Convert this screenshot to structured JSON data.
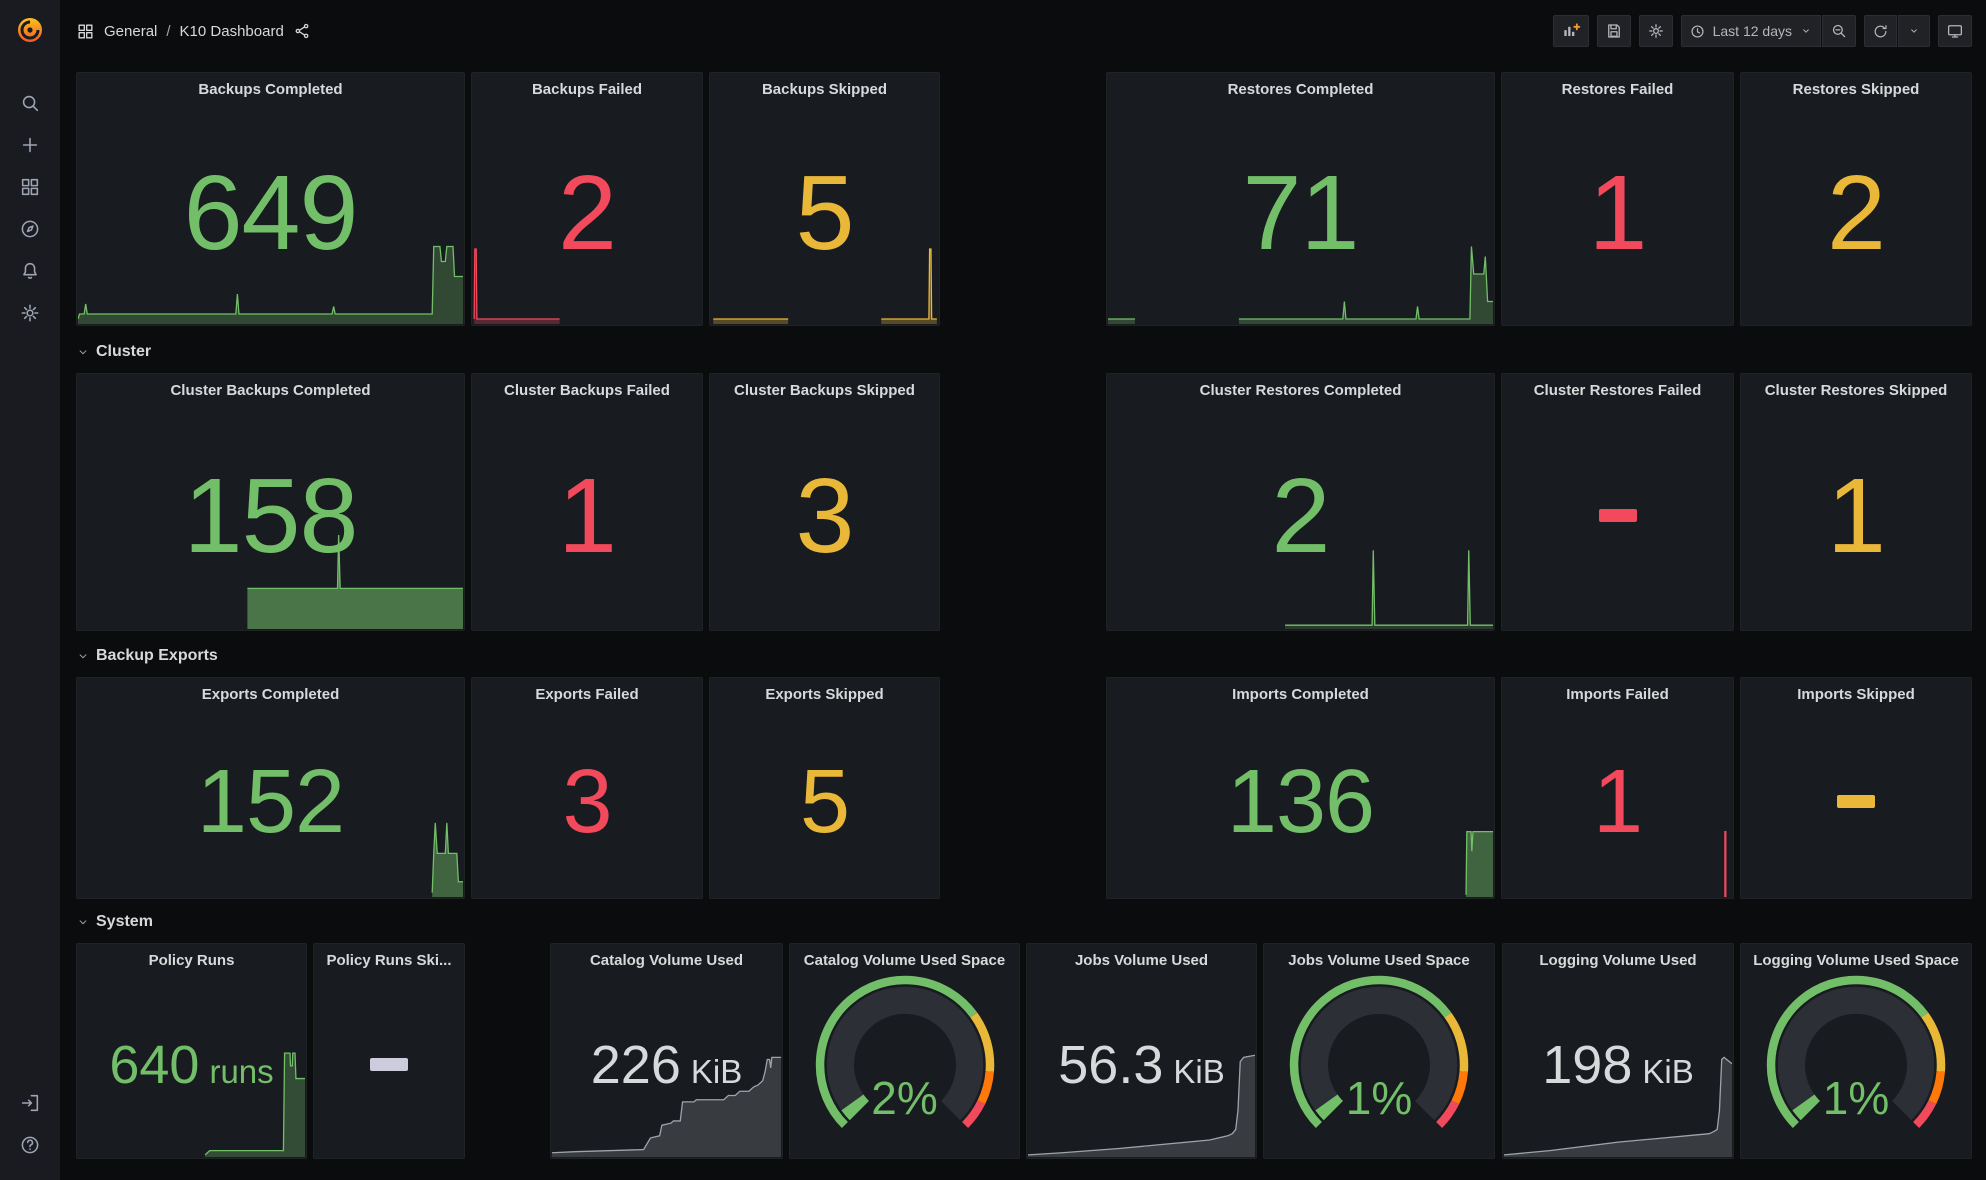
{
  "nav": {
    "folder": "General",
    "separator": "/",
    "dashboard": "K10 Dashboard",
    "time_range": "Last 12 days"
  },
  "sections": {
    "cluster": "Cluster",
    "backup_exports": "Backup Exports",
    "system": "System"
  },
  "colors": {
    "green": "#73BF69",
    "red": "#F2495C",
    "yellow": "#EAB839",
    "text": "#D8D9DA"
  },
  "gauges_common": {
    "thresholds": [
      {
        "to": 0.7,
        "color": "#73BF69"
      },
      {
        "to": 0.85,
        "color": "#EAB839"
      },
      {
        "to": 0.93,
        "color": "#FF780A"
      },
      {
        "to": 1.0,
        "color": "#F2495C"
      }
    ]
  },
  "panels": {
    "backups_completed": {
      "title": "Backups Completed",
      "value": "649",
      "spark": {
        "color": "#73BF69",
        "fill": "rgba(115,191,105,0.28)",
        "segs": [
          [
            [
              0,
              2
            ],
            [
              0.4,
              4
            ],
            [
              1.6,
              4
            ],
            [
              2,
              8
            ],
            [
              2.4,
              4
            ],
            [
              41,
              4
            ],
            [
              41.4,
              12
            ],
            [
              41.8,
              4
            ],
            [
              66,
              4
            ],
            [
              66.4,
              7
            ],
            [
              66.8,
              4
            ],
            [
              92,
              4
            ],
            [
              92.4,
              31
            ],
            [
              94,
              31
            ],
            [
              94.4,
              25
            ],
            [
              95.4,
              25
            ],
            [
              95.8,
              31
            ],
            [
              97.4,
              31
            ],
            [
              97.8,
              19
            ],
            [
              100,
              19
            ]
          ]
        ]
      }
    },
    "backups_failed": {
      "title": "Backups Failed",
      "value": "2",
      "spark": {
        "color": "#F2495C",
        "fill": "rgba(242,73,92,0.3)",
        "segs": [
          [
            [
              0.5,
              2
            ],
            [
              0.8,
              30
            ],
            [
              1.4,
              30
            ],
            [
              1.7,
              2
            ],
            [
              38,
              2
            ]
          ]
        ]
      }
    },
    "backups_skipped": {
      "title": "Backups Skipped",
      "value": "5",
      "spark": {
        "color": "#EAB839",
        "fill": "rgba(234,184,57,0.3)",
        "segs": [
          [
            [
              1,
              2
            ],
            [
              34,
              2
            ]
          ],
          [
            [
              75,
              2
            ],
            [
              96,
              2
            ],
            [
              96.3,
              30
            ],
            [
              96.9,
              30
            ],
            [
              97.2,
              2
            ],
            [
              99.5,
              2
            ]
          ]
        ]
      }
    },
    "restores_completed": {
      "title": "Restores Completed",
      "value": "71",
      "spark": {
        "color": "#73BF69",
        "fill": "rgba(115,191,105,0.28)",
        "segs": [
          [
            [
              0,
              2
            ],
            [
              7,
              2
            ]
          ],
          [
            [
              34,
              2
            ],
            [
              61,
              2
            ],
            [
              61.4,
              9
            ],
            [
              61.8,
              2
            ],
            [
              80,
              2
            ],
            [
              80.4,
              7
            ],
            [
              80.8,
              2
            ],
            [
              94,
              2
            ],
            [
              94.4,
              31
            ],
            [
              95,
              20
            ],
            [
              97.6,
              20
            ],
            [
              98,
              27
            ],
            [
              98.6,
              9
            ],
            [
              100,
              9
            ]
          ]
        ]
      }
    },
    "restores_failed": {
      "title": "Restores Failed",
      "value": "1"
    },
    "restores_skipped": {
      "title": "Restores Skipped",
      "value": "2"
    },
    "cluster_backups_completed": {
      "title": "Cluster Backups Completed",
      "value": "158",
      "spark": {
        "color": "#73BF69",
        "fill": "rgba(115,191,105,0.55)",
        "segs": [
          [
            [
              44,
              16
            ],
            [
              67.4,
              16
            ],
            [
              67.7,
              37
            ],
            [
              68.1,
              16
            ],
            [
              100,
              16
            ]
          ]
        ]
      }
    },
    "cluster_backups_failed": {
      "title": "Cluster Backups Failed",
      "value": "1"
    },
    "cluster_backups_skipped": {
      "title": "Cluster Backups Skipped",
      "value": "3"
    },
    "cluster_restores_completed": {
      "title": "Cluster Restores Completed",
      "value": "2",
      "spark": {
        "color": "#73BF69",
        "fill": "rgba(115,191,105,0.2)",
        "segs": [
          [
            [
              46,
              1.5
            ],
            [
              68.6,
              1.5
            ],
            [
              68.9,
              31
            ],
            [
              69.3,
              1.5
            ],
            [
              93.4,
              1.5
            ],
            [
              93.7,
              31
            ],
            [
              94.1,
              1.5
            ],
            [
              100,
              1.5
            ]
          ]
        ]
      }
    },
    "cluster_restores_failed": {
      "title": "Cluster Restores Failed",
      "value": "-"
    },
    "cluster_restores_skipped": {
      "title": "Cluster Restores Skipped",
      "value": "1"
    },
    "exports_completed": {
      "title": "Exports Completed",
      "value": "152",
      "spark": {
        "color": "#73BF69",
        "fill": "rgba(115,191,105,0.45)",
        "segs": [
          [
            [
              92,
              2
            ],
            [
              92.4,
              20
            ],
            [
              92.8,
              34
            ],
            [
              93.3,
              20
            ],
            [
              95.4,
              20
            ],
            [
              95.8,
              34
            ],
            [
              96.2,
              20
            ],
            [
              98.4,
              20
            ],
            [
              98.8,
              7
            ],
            [
              100,
              7
            ]
          ]
        ]
      }
    },
    "exports_failed": {
      "title": "Exports Failed",
      "value": "3"
    },
    "exports_skipped": {
      "title": "Exports Skipped",
      "value": "5"
    },
    "imports_completed": {
      "title": "Imports Completed",
      "value": "136",
      "spark": {
        "color": "#73BF69",
        "fill": "rgba(115,191,105,0.45)",
        "segs": [
          [
            [
              93,
              1
            ],
            [
              93.2,
              30
            ],
            [
              94.3,
              30
            ],
            [
              94.5,
              21
            ],
            [
              94.8,
              30
            ],
            [
              100,
              30
            ]
          ]
        ]
      }
    },
    "imports_failed": {
      "title": "Imports Failed",
      "value": "1",
      "spark": {
        "color": "#F2495C",
        "fill": "rgba(242,73,92,0.9)",
        "segs": [
          [
            [
              96.9,
              0
            ],
            [
              96.9,
              30
            ],
            [
              97.3,
              30
            ],
            [
              97.3,
              0
            ]
          ]
        ]
      }
    },
    "imports_skipped": {
      "title": "Imports Skipped",
      "value": "-"
    },
    "policy_runs": {
      "title": "Policy Runs",
      "value": "640",
      "unit": "runs",
      "spark": {
        "color": "#73BF69",
        "fill": "rgba(115,191,105,0.3)",
        "segs": [
          [
            [
              56,
              1
            ],
            [
              58,
              3
            ],
            [
              90.5,
              3
            ],
            [
              91,
              49
            ],
            [
              93.4,
              49
            ],
            [
              93.6,
              43
            ],
            [
              94.4,
              43
            ],
            [
              94.6,
              49
            ],
            [
              95.6,
              49
            ],
            [
              96,
              37
            ],
            [
              100,
              37
            ]
          ]
        ]
      }
    },
    "policy_runs_skipped": {
      "title": "Policy Runs Ski...",
      "value": "-"
    },
    "catalog_volume_used": {
      "title": "Catalog Volume Used",
      "value": "226",
      "unit": "KiB",
      "spark": {
        "color": "#9fa4ab",
        "fill": "rgba(204,208,214,0.18)",
        "segs": [
          [
            [
              0,
              2
            ],
            [
              10,
              2.5
            ],
            [
              40,
              3.5
            ],
            [
              43,
              9
            ],
            [
              47,
              10
            ],
            [
              48,
              15
            ],
            [
              52,
              16
            ],
            [
              53,
              17
            ],
            [
              56,
              17
            ],
            [
              57,
              26
            ],
            [
              62,
              26
            ],
            [
              63,
              27
            ],
            [
              75,
              27
            ],
            [
              77,
              29
            ],
            [
              80,
              29
            ],
            [
              82,
              31
            ],
            [
              86,
              31
            ],
            [
              88,
              33
            ],
            [
              90,
              34
            ],
            [
              92,
              36
            ],
            [
              93,
              40
            ],
            [
              94,
              46
            ],
            [
              95,
              46
            ],
            [
              95.5,
              42
            ],
            [
              96,
              47
            ],
            [
              98,
              47
            ],
            [
              100,
              47
            ]
          ]
        ]
      }
    },
    "catalog_volume_used_space": {
      "title": "Catalog Volume Used Space",
      "label": "2%",
      "fraction": 0.02
    },
    "jobs_volume_used": {
      "title": "Jobs Volume Used",
      "value": "56.3",
      "unit": "KiB",
      "spark": {
        "color": "#9fa4ab",
        "fill": "rgba(204,208,214,0.18)",
        "segs": [
          [
            [
              0,
              1
            ],
            [
              15,
              2
            ],
            [
              40,
              4
            ],
            [
              60,
              6
            ],
            [
              80,
              8
            ],
            [
              88,
              10
            ],
            [
              90,
              11
            ],
            [
              91.5,
              13
            ],
            [
              92.5,
              22
            ],
            [
              93.5,
              45
            ],
            [
              95,
              47
            ],
            [
              100,
              48
            ]
          ]
        ]
      }
    },
    "jobs_volume_used_space": {
      "title": "Jobs Volume Used Space",
      "label": "1%",
      "fraction": 0.01
    },
    "logging_volume_used": {
      "title": "Logging Volume Used",
      "value": "198",
      "unit": "KiB",
      "spark": {
        "color": "#9fa4ab",
        "fill": "rgba(204,208,214,0.18)",
        "segs": [
          [
            [
              0,
              1
            ],
            [
              20,
              3
            ],
            [
              50,
              7
            ],
            [
              80,
              10
            ],
            [
              90,
              11
            ],
            [
              92,
              12
            ],
            [
              93.5,
              13
            ],
            [
              94.5,
              22
            ],
            [
              95.5,
              46
            ],
            [
              96.5,
              47
            ],
            [
              100,
              44
            ]
          ]
        ]
      }
    },
    "logging_volume_used_space": {
      "title": "Logging Volume Used Space",
      "label": "1%",
      "fraction": 0.01
    }
  }
}
